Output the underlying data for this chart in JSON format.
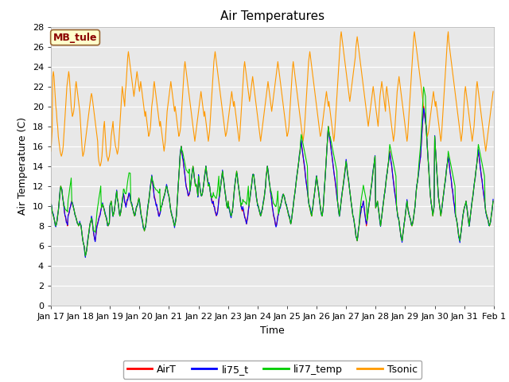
{
  "title": "Air Temperatures",
  "xlabel": "Time",
  "ylabel": "Air Temperature (C)",
  "ylim": [
    0,
    28
  ],
  "site_label": "MB_tule",
  "legend": [
    "AirT",
    "li75_t",
    "li77_temp",
    "Tsonic"
  ],
  "line_colors": [
    "#ff0000",
    "#0000ff",
    "#00cc00",
    "#ff9900"
  ],
  "plot_bg": "#e8e8e8",
  "fig_bg": "#ffffff",
  "num_days": 15,
  "pts_per_day": 48,
  "AirT": [
    10.2,
    10.0,
    9.5,
    9.2,
    9.0,
    8.8,
    8.5,
    8.2,
    8.0,
    8.2,
    8.5,
    9.0,
    9.5,
    10.2,
    11.0,
    11.5,
    12.0,
    11.8,
    11.5,
    11.0,
    10.5,
    10.0,
    9.5,
    9.0,
    8.8,
    8.5,
    8.3,
    8.0,
    9.0,
    9.2,
    9.5,
    9.8,
    10.0,
    10.3,
    10.5,
    10.2,
    10.0,
    9.8,
    9.5,
    9.2,
    9.0,
    8.8,
    8.5,
    8.3,
    8.2,
    8.0,
    8.2,
    8.3,
    8.2,
    8.0,
    7.5,
    7.0,
    6.5,
    6.2,
    6.0,
    5.5,
    5.0,
    5.2,
    5.5,
    6.0,
    6.5,
    7.0,
    7.5,
    8.0,
    8.3,
    8.5,
    8.8,
    8.5,
    8.0,
    7.5,
    7.0,
    6.8,
    6.5,
    7.0,
    7.5,
    8.0,
    8.3,
    8.5,
    8.8,
    9.0,
    9.2,
    9.5,
    9.8,
    10.0,
    10.2,
    10.0,
    9.8,
    9.5,
    9.2,
    9.0,
    8.8,
    8.5,
    8.2,
    8.0,
    8.2,
    8.3,
    10.0,
    10.2,
    10.5,
    10.0,
    9.5,
    9.0,
    9.2,
    9.5,
    10.0,
    10.5,
    11.0,
    11.5,
    10.8,
    10.5,
    10.0,
    9.5,
    9.0,
    9.2,
    9.5,
    10.0,
    10.5,
    11.0,
    11.2,
    11.0,
    10.5,
    10.2,
    10.0,
    10.2,
    10.5,
    10.8,
    11.0,
    11.2,
    11.0,
    10.8,
    10.5,
    10.2,
    10.0,
    9.8,
    9.5,
    9.2,
    9.0,
    9.2,
    9.5,
    9.8,
    10.0,
    10.2,
    10.5,
    10.8,
    10.5,
    10.0,
    9.5,
    9.0,
    8.8,
    8.5,
    8.0,
    7.8,
    7.5,
    7.8,
    8.0,
    8.5,
    9.0,
    9.5,
    10.0,
    10.5,
    11.0,
    11.5,
    12.0,
    12.5,
    13.0,
    12.5,
    12.0,
    11.5,
    11.0,
    10.8,
    10.5,
    10.2,
    10.0,
    9.8,
    9.5,
    9.2,
    9.0,
    9.2,
    9.5,
    9.8,
    10.0,
    10.2,
    10.5,
    10.8,
    11.0,
    11.2,
    11.5,
    11.8,
    12.0,
    11.8,
    11.5,
    11.2,
    11.0,
    10.5,
    10.0,
    9.5,
    9.2,
    9.0,
    8.8,
    8.5,
    8.2,
    8.0,
    8.2,
    8.5,
    9.0,
    10.0,
    11.0,
    12.0,
    13.0,
    14.0,
    15.0,
    15.5,
    16.0,
    15.5,
    15.0,
    14.5,
    14.0,
    13.5,
    13.0,
    12.5,
    12.0,
    11.8,
    11.5,
    11.2,
    11.0,
    11.2,
    11.5,
    12.0,
    12.5,
    13.0,
    13.5,
    14.0,
    13.5,
    13.0,
    12.5,
    12.0,
    12.2,
    12.0,
    11.5,
    11.0,
    13.0,
    12.5,
    12.0,
    11.5,
    11.2,
    11.0,
    11.2,
    11.5,
    12.0,
    12.5,
    13.0,
    13.5,
    14.0,
    13.5,
    13.0,
    12.5,
    12.0,
    12.2,
    12.0,
    11.5,
    11.0,
    10.8,
    10.5,
    10.2,
    10.5,
    10.0,
    9.8,
    9.5,
    9.2,
    9.0,
    9.2,
    9.5,
    10.0,
    10.5,
    11.0,
    11.5,
    12.0,
    12.5,
    13.0,
    13.5,
    13.0,
    12.5,
    12.0,
    11.5,
    11.0,
    10.5,
    10.0,
    9.8,
    10.5,
    10.0,
    9.8,
    9.5,
    9.2,
    9.0,
    9.2,
    9.5,
    10.0,
    10.8,
    11.5,
    12.0,
    12.5,
    13.0,
    13.5,
    13.0,
    12.5,
    12.0,
    11.5,
    11.0,
    10.5,
    10.0,
    9.8,
    9.5,
    9.8,
    9.5,
    9.2,
    9.0,
    8.8,
    8.5,
    8.2,
    8.5,
    9.0,
    9.5,
    10.0,
    10.5,
    11.0,
    11.5,
    12.0,
    12.5,
    13.0,
    13.2,
    13.0,
    12.5,
    12.0,
    11.5,
    11.0,
    10.5,
    10.2,
    10.0,
    9.8,
    9.5,
    9.2,
    9.0,
    9.2,
    9.5,
    9.8,
    10.2,
    10.5,
    11.0,
    11.5,
    12.0,
    13.0,
    13.5,
    14.0,
    13.5,
    13.0,
    12.5,
    12.0,
    11.5,
    11.0,
    10.5,
    10.0,
    9.5,
    9.0,
    8.8,
    8.5,
    8.2,
    8.0,
    8.2,
    8.5,
    9.0,
    9.2,
    9.5,
    9.8,
    10.0,
    10.2,
    10.5,
    10.8,
    11.0,
    11.2,
    11.0,
    10.8,
    10.5,
    10.2,
    10.0,
    9.8,
    9.5,
    9.2,
    9.0,
    8.8,
    8.5,
    8.2,
    8.5,
    9.0,
    9.5,
    10.0,
    10.5,
    11.0,
    11.5,
    12.0,
    12.5,
    13.0,
    13.5,
    14.0,
    14.5,
    15.0,
    15.5,
    16.0,
    16.5,
    16.0,
    15.5,
    15.0,
    14.5,
    14.0,
    13.5,
    13.0,
    12.5,
    12.0,
    11.5,
    11.0,
    10.5,
    10.0,
    9.8,
    9.5,
    9.2,
    9.0,
    9.5,
    10.0,
    10.5,
    11.0,
    11.5,
    12.0,
    12.5,
    13.0,
    12.5,
    12.0,
    11.5,
    11.0,
    10.5,
    10.0,
    9.5,
    9.2,
    9.0,
    9.5,
    10.0,
    11.0,
    12.0,
    13.0,
    14.0,
    15.0,
    16.0,
    17.0,
    18.0,
    17.5,
    17.0,
    16.5,
    16.0,
    15.5,
    15.0,
    14.5,
    14.0,
    13.5,
    13.0,
    12.5,
    12.0,
    11.5,
    11.0,
    10.5,
    10.0,
    9.5,
    9.0,
    9.5,
    10.0,
    10.5,
    11.0,
    11.5,
    12.0,
    12.5,
    13.0,
    13.5,
    14.0,
    14.5,
    14.0,
    13.5,
    13.0,
    12.5,
    12.0,
    11.5,
    11.0,
    10.5,
    10.0,
    9.5,
    9.0,
    8.8,
    8.5,
    8.0,
    7.5,
    7.0,
    6.8,
    6.5,
    7.0,
    7.5,
    8.0,
    8.5,
    9.0,
    9.5,
    9.8,
    10.0,
    10.2,
    10.5,
    10.0,
    9.5,
    9.0,
    8.5,
    8.0,
    8.5,
    9.0,
    9.5,
    10.0,
    10.5,
    11.0,
    11.5,
    12.0,
    12.5,
    13.0,
    13.5,
    14.0,
    14.5,
    15.0,
    9.8,
    10.0,
    10.2,
    10.5,
    10.0,
    9.5,
    9.0,
    8.5,
    8.0,
    8.5,
    9.0,
    9.5,
    10.0,
    10.5,
    11.0,
    11.5,
    12.0,
    12.5,
    13.0,
    13.5,
    14.0,
    14.5,
    15.0,
    15.5,
    15.0,
    14.5,
    14.0,
    13.5,
    13.0,
    12.5,
    12.0,
    11.5,
    11.0,
    10.5,
    10.0,
    9.5,
    9.0,
    8.8,
    8.5,
    8.0,
    7.5,
    7.0,
    6.8,
    6.5,
    7.0,
    7.5,
    8.0,
    8.5,
    9.0,
    9.5,
    10.0,
    10.5,
    10.0,
    9.5,
    9.2,
    9.0,
    8.8,
    8.5,
    8.2,
    8.0,
    8.2,
    8.5,
    9.0,
    9.5,
    10.0,
    10.8,
    11.5,
    12.0,
    12.5,
    13.0,
    13.5,
    14.0,
    14.5,
    15.0,
    16.0,
    17.0,
    18.0,
    19.0,
    20.0,
    19.5,
    19.0,
    18.5,
    18.0,
    17.0,
    16.0,
    15.0,
    14.0,
    13.0,
    12.0,
    11.0,
    10.5,
    10.0,
    9.5,
    9.0,
    9.5,
    10.0,
    17.0,
    16.0,
    15.0,
    14.0,
    13.0,
    12.0,
    11.0,
    10.5,
    10.0,
    9.5,
    9.0,
    9.5,
    10.0,
    10.5,
    11.0,
    11.5,
    12.0,
    12.5,
    13.0,
    13.5,
    14.0,
    14.5,
    15.0,
    14.5,
    14.0,
    13.5,
    13.0,
    12.5,
    12.0,
    11.5,
    11.0,
    10.5,
    10.0,
    9.5,
    9.0,
    8.8,
    8.5,
    8.0,
    7.5,
    7.0,
    6.8,
    6.5,
    7.0,
    7.5,
    8.0,
    8.5,
    9.0,
    9.5,
    9.8,
    10.0,
    10.2,
    10.5,
    10.0,
    9.5,
    9.0,
    8.5,
    8.0,
    8.5,
    9.0,
    9.5,
    10.0,
    10.5,
    11.0,
    11.5,
    12.0,
    12.5,
    13.0,
    13.5,
    14.0,
    14.5,
    15.0,
    15.5,
    15.0,
    14.5,
    14.0,
    13.5,
    13.0,
    12.5,
    12.0,
    11.5,
    11.0,
    10.5,
    10.0,
    9.5,
    9.2,
    9.0,
    8.8,
    8.5,
    8.2,
    8.0,
    8.2,
    8.5,
    9.0,
    9.5,
    10.0,
    10.5
  ],
  "Tsonic": [
    15.5,
    16.5,
    17.5,
    23.0,
    23.5,
    23.0,
    22.0,
    21.0,
    20.0,
    19.5,
    18.5,
    18.0,
    17.0,
    16.5,
    16.0,
    15.5,
    15.2,
    15.0,
    15.2,
    15.5,
    16.0,
    17.0,
    18.0,
    19.0,
    20.0,
    21.0,
    22.0,
    22.5,
    23.0,
    23.5,
    23.0,
    22.0,
    21.0,
    20.0,
    19.5,
    19.0,
    19.2,
    19.5,
    20.0,
    21.0,
    22.0,
    22.5,
    22.0,
    21.5,
    21.0,
    20.5,
    20.0,
    19.5,
    18.5,
    17.5,
    16.5,
    15.5,
    15.0,
    15.2,
    15.5,
    16.0,
    16.5,
    17.0,
    17.5,
    18.0,
    18.5,
    19.0,
    19.5,
    20.0,
    20.5,
    21.0,
    21.3,
    21.0,
    20.5,
    20.0,
    19.5,
    19.0,
    18.5,
    18.0,
    17.5,
    17.0,
    16.5,
    15.0,
    14.5,
    14.2,
    14.0,
    14.2,
    14.5,
    15.0,
    16.0,
    17.0,
    18.0,
    18.5,
    17.5,
    16.5,
    15.5,
    15.0,
    14.8,
    14.5,
    14.8,
    15.0,
    15.5,
    16.0,
    17.0,
    17.5,
    18.0,
    18.5,
    17.5,
    17.0,
    16.5,
    16.0,
    15.8,
    15.5,
    15.2,
    15.5,
    16.0,
    17.0,
    18.0,
    19.0,
    20.0,
    21.0,
    22.0,
    21.5,
    21.0,
    20.5,
    20.0,
    21.5,
    22.0,
    23.0,
    24.0,
    25.0,
    25.5,
    25.0,
    24.5,
    24.0,
    23.5,
    23.0,
    22.5,
    22.0,
    21.5,
    21.0,
    21.5,
    22.0,
    22.5,
    23.0,
    23.5,
    23.0,
    22.5,
    22.0,
    21.5,
    22.0,
    22.5,
    22.0,
    21.5,
    21.0,
    20.5,
    20.0,
    19.5,
    19.0,
    19.5,
    19.0,
    18.5,
    18.0,
    17.5,
    17.0,
    17.2,
    17.5,
    18.0,
    19.0,
    20.0,
    20.5,
    21.0,
    22.0,
    22.5,
    22.0,
    21.5,
    21.0,
    20.5,
    20.0,
    19.5,
    19.0,
    18.5,
    18.0,
    18.5,
    18.0,
    17.5,
    17.0,
    16.5,
    16.0,
    15.5,
    16.0,
    16.5,
    17.5,
    18.5,
    19.5,
    20.0,
    20.5,
    21.0,
    21.5,
    22.0,
    22.5,
    22.0,
    21.5,
    21.0,
    20.5,
    20.0,
    19.5,
    20.0,
    19.5,
    19.0,
    18.5,
    18.0,
    17.5,
    17.0,
    17.2,
    17.5,
    18.0,
    19.0,
    20.0,
    21.0,
    22.0,
    23.0,
    24.0,
    24.5,
    24.0,
    23.5,
    23.0,
    22.5,
    22.0,
    21.5,
    21.0,
    20.5,
    20.0,
    19.5,
    19.0,
    18.5,
    18.0,
    17.5,
    17.0,
    16.5,
    17.0,
    17.5,
    18.0,
    18.5,
    19.0,
    19.5,
    20.0,
    20.5,
    21.0,
    21.5,
    21.0,
    20.5,
    20.0,
    19.5,
    19.0,
    19.5,
    19.0,
    18.5,
    18.0,
    17.5,
    17.0,
    16.5,
    17.0,
    17.5,
    18.5,
    19.5,
    20.5,
    21.5,
    22.5,
    23.5,
    24.5,
    25.0,
    25.5,
    25.0,
    24.5,
    24.0,
    23.5,
    23.0,
    22.5,
    22.0,
    21.5,
    21.0,
    20.5,
    20.0,
    19.5,
    19.0,
    18.5,
    18.0,
    17.5,
    17.0,
    17.2,
    17.5,
    18.0,
    18.5,
    19.0,
    19.5,
    20.0,
    20.5,
    21.0,
    21.5,
    21.0,
    20.5,
    20.0,
    20.5,
    20.0,
    19.5,
    19.0,
    18.5,
    18.0,
    17.5,
    17.0,
    16.5,
    17.0,
    18.0,
    19.0,
    20.0,
    21.0,
    22.0,
    23.0,
    24.0,
    24.5,
    24.0,
    23.5,
    23.0,
    22.5,
    22.0,
    21.5,
    21.0,
    20.5,
    21.0,
    21.5,
    22.0,
    22.5,
    23.0,
    22.5,
    22.0,
    21.5,
    21.0,
    20.5,
    20.0,
    19.5,
    19.0,
    18.5,
    18.0,
    17.5,
    17.0,
    16.5,
    17.0,
    17.5,
    18.0,
    18.5,
    19.0,
    19.5,
    20.0,
    20.5,
    21.0,
    21.5,
    22.0,
    22.5,
    22.0,
    21.5,
    21.0,
    20.5,
    20.0,
    19.5,
    20.0,
    20.5,
    21.0,
    21.5,
    22.0,
    22.5,
    23.0,
    23.5,
    24.0,
    24.5,
    24.0,
    23.5,
    23.0,
    22.5,
    22.0,
    21.5,
    21.0,
    20.5,
    20.0,
    19.5,
    19.0,
    18.5,
    18.0,
    17.5,
    17.0,
    17.2,
    17.5,
    18.0,
    19.0,
    20.0,
    21.0,
    22.0,
    23.0,
    24.0,
    24.5,
    24.0,
    23.5,
    23.0,
    22.5,
    22.0,
    21.5,
    21.0,
    20.5,
    20.0,
    19.5,
    19.0,
    18.5,
    18.0,
    17.5,
    17.0,
    16.5,
    17.0,
    17.5,
    18.5,
    19.5,
    20.5,
    21.5,
    22.5,
    23.5,
    24.5,
    25.0,
    25.5,
    25.0,
    24.5,
    24.0,
    23.5,
    23.0,
    22.5,
    22.0,
    21.5,
    21.0,
    20.5,
    20.0,
    19.5,
    19.0,
    18.5,
    18.0,
    17.5,
    17.0,
    17.2,
    17.5,
    18.0,
    18.5,
    19.0,
    19.5,
    20.0,
    20.5,
    21.0,
    21.5,
    21.0,
    20.5,
    20.0,
    20.5,
    20.0,
    19.5,
    19.0,
    18.5,
    18.0,
    17.5,
    17.0,
    16.5,
    17.0,
    18.0,
    19.0,
    20.0,
    21.0,
    22.0,
    23.0,
    24.0,
    25.0,
    26.0,
    27.0,
    27.5,
    27.0,
    26.5,
    26.0,
    25.5,
    25.0,
    24.5,
    24.0,
    23.5,
    23.0,
    22.5,
    22.0,
    21.5,
    21.0,
    20.5,
    21.0,
    21.5,
    22.0,
    22.5,
    23.0,
    23.5,
    24.0,
    24.5,
    25.0,
    26.0,
    26.5,
    27.0,
    26.5,
    26.0,
    25.5,
    25.0,
    24.5,
    24.0,
    23.5,
    23.0,
    22.5,
    22.0,
    21.5,
    21.0,
    20.5,
    20.0,
    19.5,
    19.0,
    18.5,
    18.0,
    18.5,
    19.0,
    19.5,
    20.0,
    20.5,
    21.0,
    21.5,
    22.0,
    21.5,
    21.0,
    20.5,
    20.0,
    19.5,
    19.0,
    18.5,
    18.0,
    19.0,
    20.0,
    21.0,
    21.5,
    22.0,
    22.5,
    22.0,
    21.5,
    21.0,
    20.5,
    20.0,
    19.5,
    21.5,
    22.0,
    21.5,
    21.0,
    20.5,
    20.0,
    19.5,
    19.0,
    18.5,
    18.0,
    17.5,
    17.0,
    16.5,
    17.0,
    17.5,
    18.5,
    19.5,
    20.5,
    21.5,
    22.0,
    22.5,
    23.0,
    22.5,
    22.0,
    21.5,
    21.0,
    20.5,
    20.0,
    19.5,
    19.0,
    18.5,
    18.0,
    17.5,
    17.0,
    16.5,
    17.0,
    18.0,
    19.0,
    20.0,
    21.0,
    22.0,
    23.0,
    24.0,
    25.0,
    26.0,
    27.0,
    27.5,
    27.0,
    26.5,
    26.0,
    25.5,
    25.0,
    24.5,
    24.0,
    23.5,
    23.0,
    22.5,
    22.0,
    21.5,
    21.0,
    20.5,
    20.0,
    19.5,
    19.0,
    18.5,
    18.0,
    17.5,
    17.0,
    17.2,
    17.5,
    18.0,
    18.5,
    19.0,
    19.5,
    20.0,
    20.5,
    21.0,
    21.5,
    21.0,
    20.5,
    20.0,
    20.5,
    20.0,
    19.5,
    19.0,
    18.5,
    18.0,
    17.5,
    17.0,
    16.5,
    17.0,
    18.0,
    19.0,
    20.0,
    21.0,
    22.0,
    23.0,
    24.0,
    25.0,
    26.0,
    27.0,
    27.5,
    26.5,
    26.0,
    25.5,
    25.0,
    24.5,
    24.0,
    23.5,
    23.0,
    22.5,
    22.0,
    21.5,
    21.0,
    20.5,
    20.0,
    19.5,
    19.0,
    18.5,
    18.0,
    17.5,
    17.0,
    16.5,
    17.0,
    17.5,
    18.5,
    19.5,
    20.5,
    21.5,
    22.0,
    21.5,
    21.0,
    20.5,
    20.0,
    19.5,
    19.0,
    18.5,
    18.0,
    17.5,
    17.0,
    16.5,
    17.0,
    17.5,
    18.0,
    19.0,
    20.0,
    21.0,
    22.0,
    22.5,
    22.0,
    21.5,
    21.0,
    20.5,
    20.0,
    19.5,
    19.0,
    18.5,
    18.0,
    17.5,
    17.0,
    16.5,
    16.0,
    15.5,
    16.0,
    16.5,
    17.0,
    17.5,
    18.0,
    18.5,
    19.0,
    19.5,
    20.0,
    20.5,
    21.0,
    21.5
  ]
}
